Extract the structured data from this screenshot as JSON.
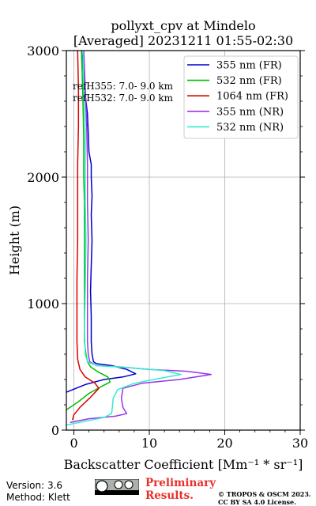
{
  "chart_data": {
    "type": "line",
    "title_lines": [
      "pollyxt_cpv at Mindelo",
      "[Averaged] 20231211 01:55-02:30"
    ],
    "xlabel": "Backscatter Coefficient [Mm⁻¹ * sr⁻¹]",
    "ylabel": "Height (m)",
    "xlim": [
      -1,
      30
    ],
    "ylim": [
      0,
      3000
    ],
    "x_ticks": [
      0,
      10,
      20,
      30
    ],
    "y_ticks": [
      0,
      1000,
      2000,
      3000
    ],
    "grid": true,
    "legend_position": "top-right",
    "annotations": [
      "refH355:  7.0- 9.0 km",
      "refH532:  7.0- 9.0 km"
    ],
    "series": [
      {
        "name": "355 nm (FR)",
        "color": "#0000cc",
        "points": [
          [
            -1.0,
            300
          ],
          [
            1.5,
            360
          ],
          [
            4,
            400
          ],
          [
            6.5,
            420
          ],
          [
            8.2,
            445
          ],
          [
            7,
            480
          ],
          [
            5,
            510
          ],
          [
            3,
            525
          ],
          [
            2.6,
            540
          ],
          [
            2.4,
            600
          ],
          [
            2.3,
            700
          ],
          [
            2.3,
            900
          ],
          [
            2.2,
            1100
          ],
          [
            2.3,
            1300
          ],
          [
            2.4,
            1500
          ],
          [
            2.3,
            1700
          ],
          [
            2.4,
            1850
          ],
          [
            2.3,
            2000
          ],
          [
            2.3,
            2100
          ],
          [
            2.0,
            2200
          ],
          [
            1.9,
            2350
          ],
          [
            1.8,
            2500
          ],
          [
            1.5,
            2650
          ],
          [
            1.3,
            2800
          ],
          [
            1.2,
            2900
          ],
          [
            1.0,
            3000
          ]
        ]
      },
      {
        "name": "532 nm (FR)",
        "color": "#00bb00",
        "points": [
          [
            -1.0,
            160
          ],
          [
            0.5,
            220
          ],
          [
            2.0,
            290
          ],
          [
            3.5,
            340
          ],
          [
            4.8,
            380
          ],
          [
            4.5,
            420
          ],
          [
            3.2,
            460
          ],
          [
            2.2,
            500
          ],
          [
            1.8,
            540
          ],
          [
            1.6,
            600
          ],
          [
            1.4,
            700
          ],
          [
            1.4,
            900
          ],
          [
            1.4,
            1200
          ],
          [
            1.4,
            1500
          ],
          [
            1.4,
            1800
          ],
          [
            1.3,
            2000
          ],
          [
            1.3,
            2300
          ],
          [
            1.2,
            2600
          ],
          [
            1.1,
            2800
          ],
          [
            1.0,
            3000
          ]
        ]
      },
      {
        "name": "1064 nm (FR)",
        "color": "#dd0000",
        "points": [
          [
            -0.2,
            80
          ],
          [
            0.0,
            120
          ],
          [
            0.8,
            180
          ],
          [
            2.2,
            260
          ],
          [
            3.3,
            330
          ],
          [
            2.8,
            370
          ],
          [
            1.5,
            420
          ],
          [
            0.8,
            480
          ],
          [
            0.5,
            560
          ],
          [
            0.4,
            700
          ],
          [
            0.4,
            900
          ],
          [
            0.4,
            1200
          ],
          [
            0.5,
            1500
          ],
          [
            0.5,
            1800
          ],
          [
            0.5,
            2100
          ],
          [
            0.6,
            2400
          ],
          [
            0.6,
            2700
          ],
          [
            0.5,
            3000
          ]
        ]
      },
      {
        "name": "355 nm (NR)",
        "color": "#9933ee",
        "points": [
          [
            -0.5,
            60
          ],
          [
            2,
            90
          ],
          [
            5.5,
            110
          ],
          [
            7,
            130
          ],
          [
            6.5,
            180
          ],
          [
            6.3,
            250
          ],
          [
            6.5,
            330
          ],
          [
            9,
            370
          ],
          [
            14,
            400
          ],
          [
            18.2,
            440
          ],
          [
            15,
            465
          ],
          [
            10,
            480
          ],
          [
            6,
            500
          ],
          [
            3,
            510
          ],
          [
            2.1,
            540
          ],
          [
            1.9,
            600
          ],
          [
            1.8,
            700
          ],
          [
            1.8,
            900
          ],
          [
            1.8,
            1200
          ],
          [
            1.9,
            1500
          ],
          [
            1.8,
            1800
          ],
          [
            1.8,
            2100
          ],
          [
            1.7,
            2400
          ],
          [
            1.5,
            2700
          ],
          [
            1.3,
            3000
          ]
        ]
      },
      {
        "name": "532 nm (NR)",
        "color": "#33eecc",
        "points": [
          [
            -1.0,
            40
          ],
          [
            1.5,
            70
          ],
          [
            4,
            100
          ],
          [
            5.0,
            130
          ],
          [
            5.1,
            180
          ],
          [
            5.2,
            250
          ],
          [
            5.8,
            320
          ],
          [
            8,
            370
          ],
          [
            11.5,
            410
          ],
          [
            14.2,
            440
          ],
          [
            12,
            470
          ],
          [
            7,
            495
          ],
          [
            3,
            510
          ],
          [
            1.8,
            540
          ],
          [
            1.5,
            600
          ],
          [
            1.4,
            800
          ],
          [
            1.5,
            1100
          ],
          [
            1.6,
            1500
          ],
          [
            1.5,
            1800
          ],
          [
            1.5,
            2100
          ],
          [
            1.5,
            2400
          ],
          [
            1.3,
            2700
          ],
          [
            1.2,
            3000
          ]
        ]
      }
    ]
  },
  "footer": {
    "version": "Version: 3.6",
    "method": "Method: Klett",
    "preliminary_line1": "Preliminary",
    "preliminary_line2": "Results.",
    "copyright_line1": "© TROPOS & OSCM 2023.",
    "copyright_line2": "CC BY SA 4.0 License."
  },
  "colors": {
    "preliminary": "#e8302a",
    "grid": "#b0b0b0",
    "legend_border": "#cccccc"
  },
  "icons": {
    "license_badge": "cc-by-sa-icon"
  }
}
